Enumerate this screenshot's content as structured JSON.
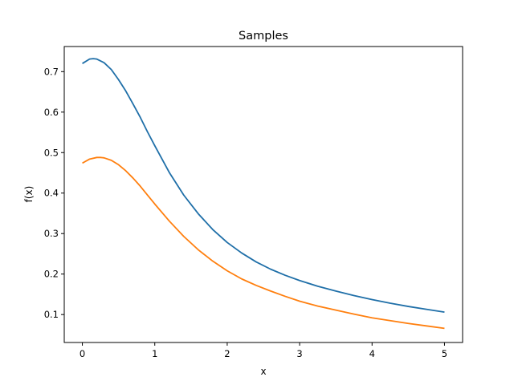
{
  "chart_data": {
    "type": "line",
    "title": "Samples",
    "xlabel": "x",
    "ylabel": "f(x)",
    "xlim": [
      -0.25,
      5.25
    ],
    "ylim": [
      0.031,
      0.762
    ],
    "xticks": [
      0,
      1,
      2,
      3,
      4,
      5
    ],
    "yticks": [
      0.1,
      0.2,
      0.3,
      0.4,
      0.5,
      0.6,
      0.7
    ],
    "grid": false,
    "legend": "none",
    "series": [
      {
        "color": "#1f6fa8",
        "x": [
          0,
          0.1,
          0.15,
          0.2,
          0.3,
          0.4,
          0.5,
          0.6,
          0.7,
          0.8,
          0.9,
          1.0,
          1.2,
          1.4,
          1.6,
          1.8,
          2.0,
          2.2,
          2.4,
          2.6,
          2.8,
          3.0,
          3.25,
          3.5,
          3.75,
          4.0,
          4.25,
          4.5,
          4.75,
          5.0
        ],
        "y": [
          0.72,
          0.731,
          0.732,
          0.731,
          0.722,
          0.705,
          0.68,
          0.652,
          0.62,
          0.587,
          0.551,
          0.517,
          0.451,
          0.395,
          0.349,
          0.31,
          0.278,
          0.252,
          0.23,
          0.212,
          0.197,
          0.184,
          0.17,
          0.158,
          0.147,
          0.137,
          0.128,
          0.12,
          0.113,
          0.106
        ]
      },
      {
        "color": "#ff7f0e",
        "x": [
          0,
          0.1,
          0.2,
          0.25,
          0.3,
          0.4,
          0.5,
          0.6,
          0.7,
          0.8,
          0.9,
          1.0,
          1.2,
          1.4,
          1.6,
          1.8,
          2.0,
          2.2,
          2.4,
          2.6,
          2.8,
          3.0,
          3.25,
          3.5,
          3.75,
          4.0,
          4.25,
          4.5,
          4.75,
          5.0
        ],
        "y": [
          0.474,
          0.484,
          0.488,
          0.488,
          0.487,
          0.481,
          0.47,
          0.455,
          0.437,
          0.417,
          0.395,
          0.373,
          0.331,
          0.293,
          0.26,
          0.232,
          0.208,
          0.188,
          0.172,
          0.158,
          0.145,
          0.133,
          0.121,
          0.111,
          0.101,
          0.092,
          0.085,
          0.078,
          0.072,
          0.066
        ]
      }
    ]
  }
}
